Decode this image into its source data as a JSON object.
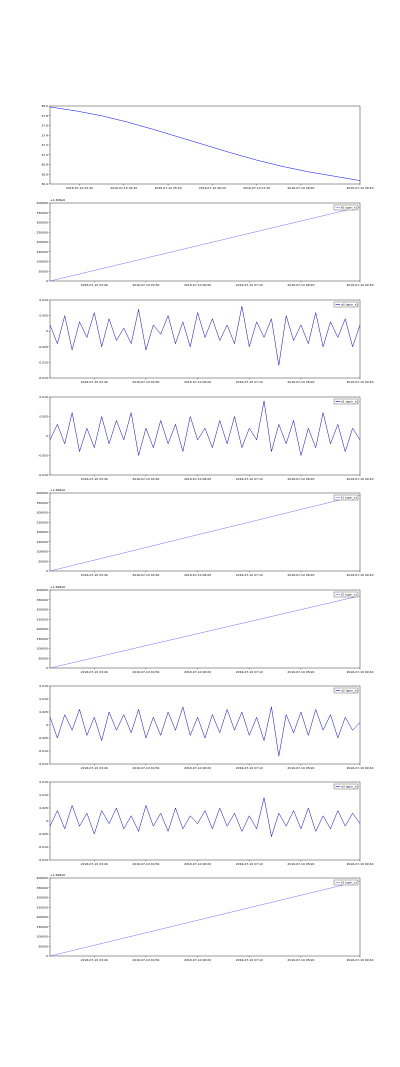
{
  "chart_data": [
    {
      "type": "line",
      "color": "#0000ff",
      "x": [
        0,
        35,
        70,
        105,
        140,
        175,
        210,
        245,
        280,
        315,
        350,
        385,
        420
      ],
      "values": [
        37.98,
        37.9,
        37.8,
        37.67,
        37.52,
        37.36,
        37.2,
        37.04,
        36.89,
        36.76,
        36.65,
        36.56,
        36.47
      ],
      "xlim": [
        0,
        420
      ],
      "ylim": [
        36.4,
        38.0
      ],
      "yticks": [
        {
          "value": 36.4,
          "label": "36.4"
        },
        {
          "value": 36.6,
          "label": "36.6"
        },
        {
          "value": 36.8,
          "label": "36.8"
        },
        {
          "value": 37.0,
          "label": "37.0"
        },
        {
          "value": 37.2,
          "label": "37.2"
        },
        {
          "value": 37.4,
          "label": "37.4"
        },
        {
          "value": 37.6,
          "label": "37.6"
        },
        {
          "value": 37.8,
          "label": "37.8"
        },
        {
          "value": 38.0,
          "label": "38.0"
        }
      ],
      "xticks": [
        {
          "value": 40,
          "label": "2016-07-10 03:20"
        },
        {
          "value": 100,
          "label": "2016-07-10 04:20"
        },
        {
          "value": 160,
          "label": "2016-07-10 05:20"
        },
        {
          "value": 220,
          "label": "2016-07-10 06:20"
        },
        {
          "value": 280,
          "label": "2016-07-10 07:20"
        },
        {
          "value": 340,
          "label": "2016-07-10 08:20"
        },
        {
          "value": 420,
          "label": "2016-07-10 09:40"
        }
      ]
    },
    {
      "type": "line",
      "offset": "+1.468e9",
      "x": [
        0,
        420
      ],
      "series": [
        {
          "name": "t0 (spin_x)",
          "color": "#6f6fff",
          "values": [
            0,
            380000
          ]
        }
      ],
      "xlim": [
        0,
        420
      ],
      "ylim": [
        0,
        400000
      ],
      "yticks": [
        0,
        50000,
        100000,
        150000,
        200000,
        250000,
        300000,
        350000,
        400000
      ],
      "xticks": [
        {
          "value": 60,
          "label": "2016-07-10 03:40"
        },
        {
          "value": 130,
          "label": "2016-07-10 04:50"
        },
        {
          "value": 200,
          "label": "2016-07-10 06:00"
        },
        {
          "value": 270,
          "label": "2016-07-10 07:10"
        },
        {
          "value": 340,
          "label": "2016-07-10 08:20"
        },
        {
          "value": 420,
          "label": "2016-07-10 09:40"
        }
      ]
    },
    {
      "type": "line",
      "x": [
        0,
        10,
        20,
        30,
        40,
        50,
        60,
        70,
        80,
        90,
        100,
        110,
        120,
        130,
        140,
        150,
        160,
        170,
        180,
        190,
        200,
        210,
        220,
        230,
        240,
        250,
        260,
        270,
        280,
        290,
        300,
        310,
        320,
        330,
        340,
        350,
        360,
        370,
        380,
        390,
        400,
        410,
        420
      ],
      "series": [
        {
          "name": "a0 (spin_x)",
          "color": "#0000ff",
          "values": [
            0.002,
            -0.004,
            0.005,
            -0.006,
            0.003,
            -0.002,
            0.006,
            -0.005,
            0.004,
            -0.003,
            0.001,
            -0.004,
            0.007,
            -0.006,
            0.002,
            -0.001,
            0.005,
            -0.004,
            0.003,
            -0.005,
            0.006,
            -0.002,
            0.004,
            -0.003,
            0.002,
            -0.004,
            0.008,
            -0.005,
            0.003,
            -0.002,
            0.004,
            -0.011,
            0.005,
            -0.003,
            0.002,
            -0.004,
            0.006,
            -0.005,
            0.003,
            -0.002,
            0.004,
            -0.005,
            0.002
          ]
        }
      ],
      "xlim": [
        0,
        420
      ],
      "ylim": [
        -0.015,
        0.01
      ],
      "yticks": [
        {
          "value": -0.015,
          "label": "-0.015"
        },
        {
          "value": -0.01,
          "label": "-0.010"
        },
        {
          "value": -0.005,
          "label": "-0.005"
        },
        0,
        {
          "value": 0.005,
          "label": "0.005"
        },
        {
          "value": 0.01,
          "label": "0.010"
        }
      ],
      "xticks": [
        {
          "value": 60,
          "label": "2016-07-10 03:40"
        },
        {
          "value": 130,
          "label": "2016-07-10 04:50"
        },
        {
          "value": 200,
          "label": "2016-07-10 06:00"
        },
        {
          "value": 270,
          "label": "2016-07-10 07:10"
        },
        {
          "value": 340,
          "label": "2016-07-10 08:20"
        },
        {
          "value": 420,
          "label": "2016-07-10 09:40"
        }
      ]
    },
    {
      "type": "line",
      "x": [
        0,
        10,
        20,
        30,
        40,
        50,
        60,
        70,
        80,
        90,
        100,
        110,
        120,
        130,
        140,
        150,
        160,
        170,
        180,
        190,
        200,
        210,
        220,
        230,
        240,
        250,
        260,
        270,
        280,
        290,
        300,
        310,
        320,
        330,
        340,
        350,
        360,
        370,
        380,
        390,
        400,
        410,
        420
      ],
      "series": [
        {
          "name": "a1 (spin_x)",
          "color": "#0000ff",
          "values": [
            -0.001,
            0.003,
            -0.002,
            0.006,
            -0.004,
            0.002,
            -0.003,
            0.005,
            -0.002,
            0.004,
            -0.001,
            0.006,
            -0.005,
            0.002,
            -0.003,
            0.004,
            -0.002,
            0.003,
            -0.004,
            0.005,
            -0.001,
            0.002,
            -0.003,
            0.004,
            -0.002,
            0.005,
            -0.003,
            0.002,
            -0.001,
            0.009,
            -0.004,
            0.003,
            -0.002,
            0.004,
            -0.005,
            0.002,
            -0.003,
            0.006,
            -0.002,
            0.003,
            -0.004,
            0.002,
            -0.001
          ]
        }
      ],
      "xlim": [
        0,
        420
      ],
      "ylim": [
        -0.01,
        0.01
      ],
      "yticks": [
        {
          "value": -0.01,
          "label": "-0.010"
        },
        {
          "value": -0.005,
          "label": "-0.005"
        },
        0,
        {
          "value": 0.005,
          "label": "0.005"
        },
        {
          "value": 0.01,
          "label": "0.010"
        }
      ],
      "xticks": [
        {
          "value": 60,
          "label": "2016-07-10 03:40"
        },
        {
          "value": 130,
          "label": "2016-07-10 04:50"
        },
        {
          "value": 200,
          "label": "2016-07-10 06:00"
        },
        {
          "value": 270,
          "label": "2016-07-10 07:10"
        },
        {
          "value": 340,
          "label": "2016-07-10 08:20"
        },
        {
          "value": 420,
          "label": "2016-07-10 09:40"
        }
      ]
    },
    {
      "type": "line",
      "offset": "+1.468e9",
      "x": [
        0,
        420
      ],
      "series": [
        {
          "name": "t1 (spin_x)",
          "color": "#6f6fff",
          "values": [
            0,
            390000
          ]
        }
      ],
      "xlim": [
        0,
        420
      ],
      "ylim": [
        0,
        400000
      ],
      "yticks": [
        0,
        50000,
        100000,
        150000,
        200000,
        250000,
        300000,
        350000,
        400000
      ],
      "xticks": [
        {
          "value": 60,
          "label": "2016-07-10 03:40"
        },
        {
          "value": 130,
          "label": "2016-07-10 04:50"
        },
        {
          "value": 200,
          "label": "2016-07-10 06:00"
        },
        {
          "value": 270,
          "label": "2016-07-10 07:10"
        },
        {
          "value": 340,
          "label": "2016-07-10 08:20"
        },
        {
          "value": 420,
          "label": "2016-07-10 09:40"
        }
      ]
    },
    {
      "type": "line",
      "offset": "+1.468e9",
      "x": [
        0,
        420
      ],
      "series": [
        {
          "name": "t2 (spin_x)",
          "color": "#6f6fff",
          "values": [
            0,
            370000
          ]
        }
      ],
      "xlim": [
        0,
        420
      ],
      "ylim": [
        0,
        400000
      ],
      "yticks": [
        0,
        50000,
        100000,
        150000,
        200000,
        250000,
        300000,
        350000,
        400000
      ],
      "xticks": [
        {
          "value": 60,
          "label": "2016-07-10 03:40"
        },
        {
          "value": 130,
          "label": "2016-07-10 04:50"
        },
        {
          "value": 200,
          "label": "2016-07-10 06:00"
        },
        {
          "value": 270,
          "label": "2016-07-10 07:10"
        },
        {
          "value": 340,
          "label": "2016-07-10 08:20"
        },
        {
          "value": 420,
          "label": "2016-07-10 09:40"
        }
      ]
    },
    {
      "type": "line",
      "x": [
        0,
        10,
        20,
        30,
        40,
        50,
        60,
        70,
        80,
        90,
        100,
        110,
        120,
        130,
        140,
        150,
        160,
        170,
        180,
        190,
        200,
        210,
        220,
        230,
        240,
        250,
        260,
        270,
        280,
        290,
        300,
        310,
        320,
        330,
        340,
        350,
        360,
        370,
        380,
        390,
        400,
        410,
        420
      ],
      "series": [
        {
          "name": "a2 (spin_x)",
          "color": "#0000ff",
          "values": [
            0.003,
            -0.005,
            0.004,
            -0.002,
            0.006,
            -0.004,
            0.003,
            -0.006,
            0.005,
            -0.002,
            0.004,
            -0.003,
            0.006,
            -0.005,
            0.003,
            -0.004,
            0.005,
            -0.002,
            0.007,
            -0.004,
            0.003,
            -0.005,
            0.004,
            -0.003,
            0.006,
            -0.002,
            0.005,
            -0.004,
            0.003,
            -0.006,
            0.007,
            -0.012,
            0.004,
            -0.003,
            0.005,
            -0.004,
            0.006,
            -0.002,
            0.004,
            -0.005,
            0.003,
            -0.002,
            0.001
          ]
        }
      ],
      "xlim": [
        0,
        420
      ],
      "ylim": [
        -0.015,
        0.015
      ],
      "yticks": [
        {
          "value": -0.015,
          "label": "-0.015"
        },
        {
          "value": -0.01,
          "label": "-0.010"
        },
        {
          "value": -0.005,
          "label": "-0.005"
        },
        0,
        {
          "value": 0.005,
          "label": "0.005"
        },
        {
          "value": 0.01,
          "label": "0.010"
        },
        {
          "value": 0.015,
          "label": "0.015"
        }
      ],
      "xticks": [
        {
          "value": 60,
          "label": "2016-07-10 03:40"
        },
        {
          "value": 130,
          "label": "2016-07-10 04:50"
        },
        {
          "value": 200,
          "label": "2016-07-10 06:00"
        },
        {
          "value": 270,
          "label": "2016-07-10 07:10"
        },
        {
          "value": 340,
          "label": "2016-07-10 08:20"
        },
        {
          "value": 420,
          "label": "2016-07-10 09:40"
        }
      ]
    },
    {
      "type": "line",
      "x": [
        0,
        10,
        20,
        30,
        40,
        50,
        60,
        70,
        80,
        90,
        100,
        110,
        120,
        130,
        140,
        150,
        160,
        170,
        180,
        190,
        200,
        210,
        220,
        230,
        240,
        250,
        260,
        270,
        280,
        290,
        300,
        310,
        320,
        330,
        340,
        350,
        360,
        370,
        380,
        390,
        400,
        410,
        420
      ],
      "series": [
        {
          "name": "a3 (spin_x)",
          "color": "#0000ff",
          "values": [
            -0.002,
            0.004,
            -0.003,
            0.006,
            -0.002,
            0.003,
            -0.005,
            0.004,
            -0.001,
            0.005,
            -0.003,
            0.002,
            -0.004,
            0.006,
            -0.002,
            0.003,
            -0.004,
            0.005,
            -0.003,
            0.002,
            -0.001,
            0.004,
            -0.003,
            0.005,
            -0.002,
            0.003,
            -0.004,
            0.002,
            -0.003,
            0.009,
            -0.006,
            0.003,
            -0.002,
            0.004,
            -0.003,
            0.005,
            -0.004,
            0.002,
            -0.003,
            0.004,
            -0.002,
            0.003,
            -0.001
          ]
        }
      ],
      "xlim": [
        0,
        420
      ],
      "ylim": [
        -0.015,
        0.015
      ],
      "yticks": [
        {
          "value": -0.015,
          "label": "-0.015"
        },
        {
          "value": -0.01,
          "label": "-0.010"
        },
        {
          "value": -0.005,
          "label": "-0.005"
        },
        0,
        {
          "value": 0.005,
          "label": "0.005"
        },
        {
          "value": 0.01,
          "label": "0.010"
        },
        {
          "value": 0.015,
          "label": "0.015"
        }
      ],
      "xticks": [
        {
          "value": 60,
          "label": "2016-07-10 03:40"
        },
        {
          "value": 130,
          "label": "2016-07-10 04:50"
        },
        {
          "value": 200,
          "label": "2016-07-10 06:00"
        },
        {
          "value": 270,
          "label": "2016-07-10 07:10"
        },
        {
          "value": 340,
          "label": "2016-07-10 08:20"
        },
        {
          "value": 420,
          "label": "2016-07-10 09:40"
        }
      ]
    },
    {
      "type": "line",
      "offset": "+1.468e9",
      "x": [
        0,
        420
      ],
      "series": [
        {
          "name": "t3 (spin_x)",
          "color": "#6f6fff",
          "values": [
            0,
            385000
          ]
        }
      ],
      "xlim": [
        0,
        420
      ],
      "ylim": [
        0,
        400000
      ],
      "yticks": [
        0,
        50000,
        100000,
        150000,
        200000,
        250000,
        300000,
        350000,
        400000
      ],
      "xticks": [
        {
          "value": 60,
          "label": "2016-07-10 03:40"
        },
        {
          "value": 130,
          "label": "2016-07-10 04:50"
        },
        {
          "value": 200,
          "label": "2016-07-10 06:00"
        },
        {
          "value": 270,
          "label": "2016-07-10 07:10"
        },
        {
          "value": 340,
          "label": "2016-07-10 08:20"
        },
        {
          "value": 420,
          "label": "2016-07-10 09:40"
        }
      ]
    }
  ]
}
